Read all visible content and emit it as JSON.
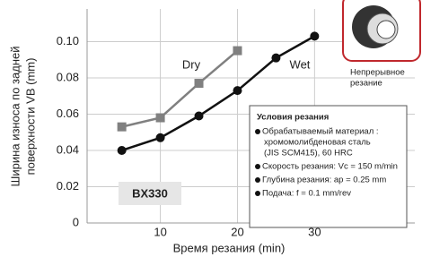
{
  "chart_data": {
    "type": "line",
    "x_label": "Время резания (min)",
    "y_label": [
      "Ширина износа по задней",
      "поверхности VB (mm)"
    ],
    "xlim": [
      0.5,
      43
    ],
    "ylim": [
      0,
      0.118
    ],
    "xticks": [
      10,
      20,
      30
    ],
    "yticks": [
      0,
      0.02,
      0.04,
      0.06,
      0.08,
      {
        "value": 0.1,
        "label": "0.10"
      }
    ],
    "grid": true,
    "series": [
      {
        "name": "Dry",
        "color": "#808080",
        "marker": "square",
        "x": [
          5,
          10,
          15,
          20
        ],
        "values": [
          0.053,
          0.058,
          0.077,
          0.095
        ]
      },
      {
        "name": "Wet",
        "color": "#111111",
        "marker": "circle",
        "x": [
          5,
          10,
          15,
          20,
          25,
          30
        ],
        "values": [
          0.04,
          0.047,
          0.059,
          0.073,
          0.091,
          0.103
        ]
      }
    ],
    "badge": "BX330",
    "conditions": {
      "title": "Условия резания",
      "items": [
        [
          "Обрабатываемый материал :",
          "хромомолибденовая сталь",
          "(JIS SCM415), 60 HRC"
        ],
        [
          "Скорость резания: Vc = 150 m/min"
        ],
        [
          "Глубина резания: ap = 0.25 mm"
        ],
        [
          "Подача: f = 0.1 mm/rev"
        ]
      ]
    },
    "inset_caption": [
      "Непрерывное",
      "резание"
    ]
  }
}
